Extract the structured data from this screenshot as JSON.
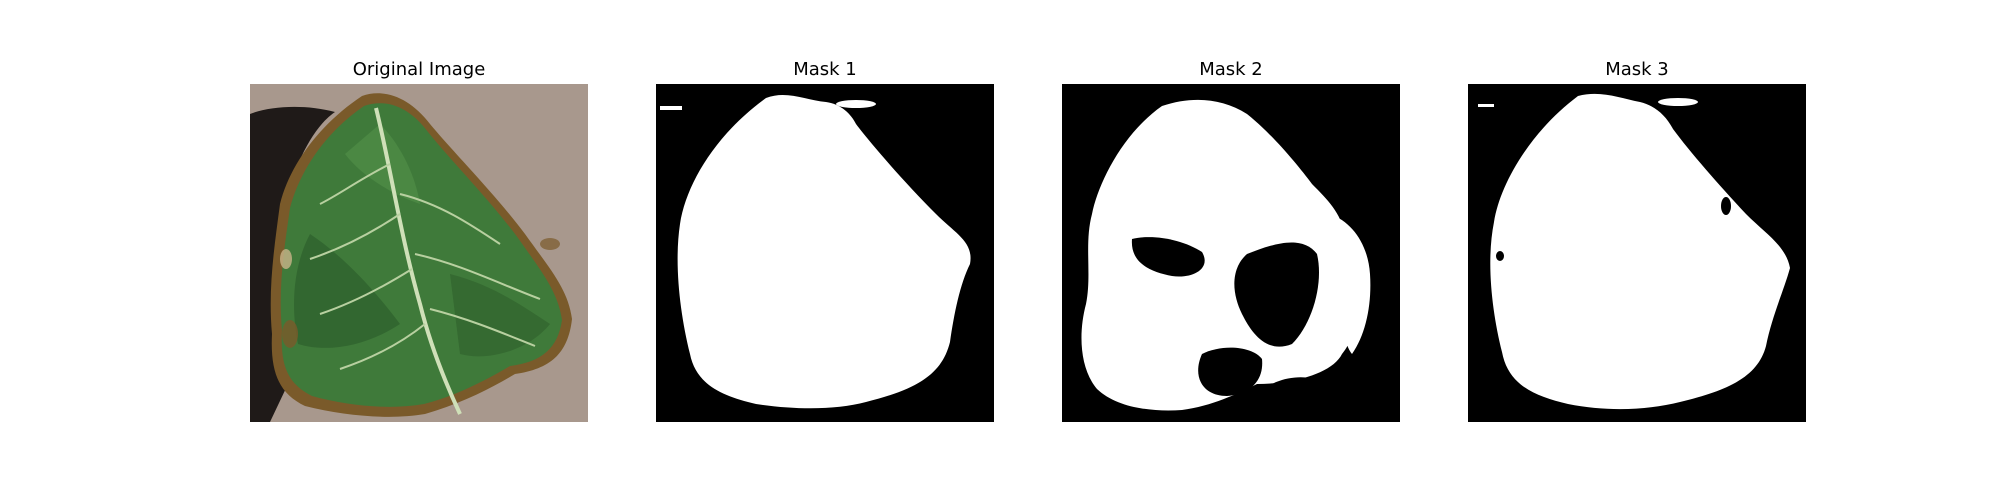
{
  "panels": [
    {
      "title": "Original Image",
      "image": "leaf-photo"
    },
    {
      "title": "Mask 1",
      "image": "mask-leaf-segmentation"
    },
    {
      "title": "Mask 2",
      "image": "mask-leaf-segmentation"
    },
    {
      "title": "Mask 3",
      "image": "mask-leaf-segmentation"
    }
  ],
  "colors": {
    "background": "#ffffff",
    "mask_background": "#000000",
    "mask_foreground": "#ffffff",
    "cardboard": "#a49388",
    "leaf_green": "#3f7a3a",
    "leaf_dark": "#2e5f2c",
    "leaf_edge_brown": "#7a5a2a",
    "shadow": "#1f1a18"
  }
}
